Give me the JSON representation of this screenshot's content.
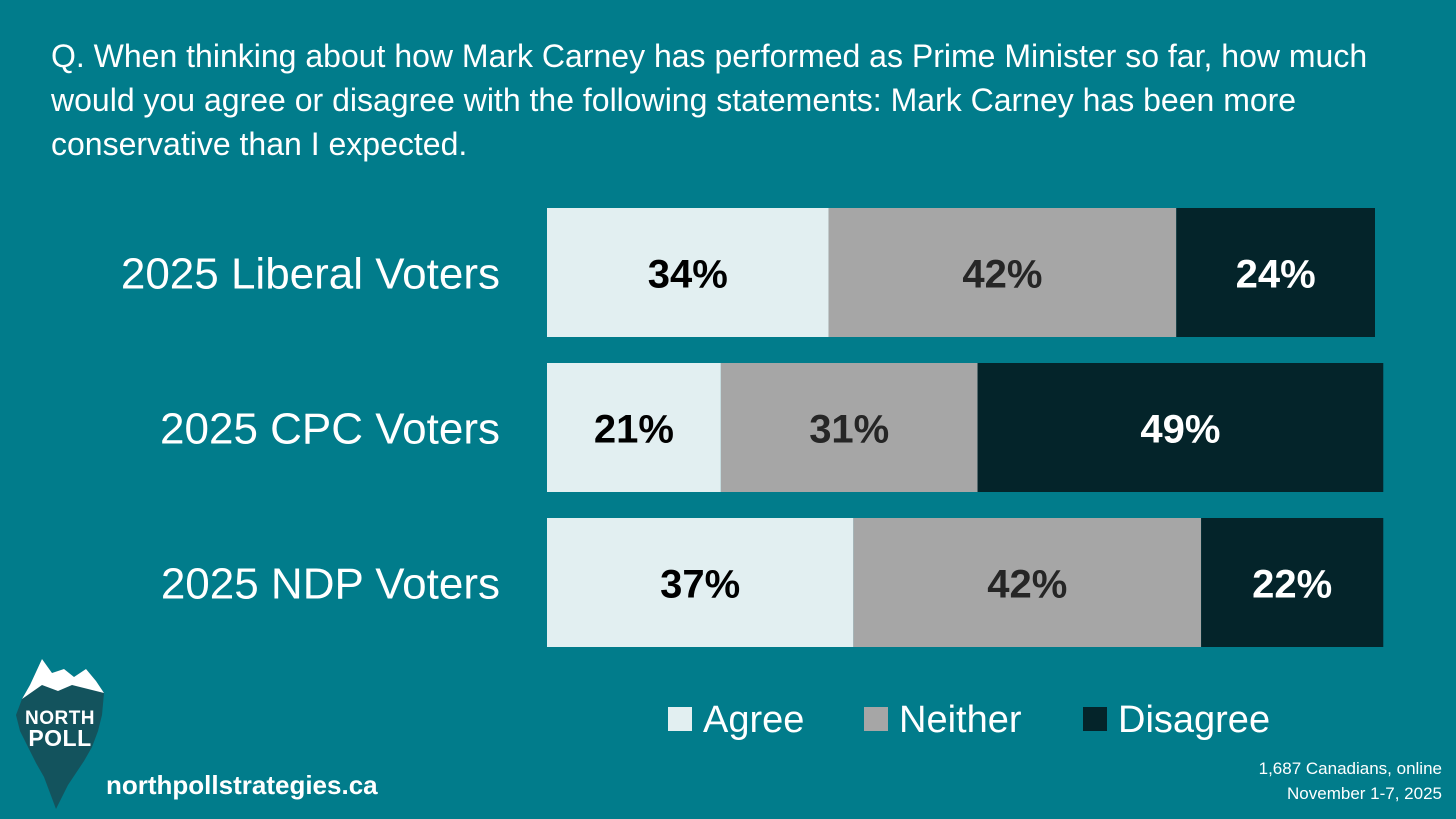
{
  "question": "Q. When thinking about how Mark Carney has performed as Prime Minister so far, how much would you agree or disagree with the following statements: Mark Carney has been more conservative than I expected.",
  "colors": {
    "background": "#017c8b",
    "agree": "#e2eff1",
    "neither": "#a6a6a6",
    "disagree": "#04242a"
  },
  "chart_data": {
    "type": "bar",
    "orientation": "horizontal",
    "stacked": true,
    "categories": [
      "2025 Liberal Voters",
      "2025 CPC Voters",
      "2025 NDP Voters"
    ],
    "series": [
      {
        "name": "Agree",
        "values": [
          34,
          21,
          37
        ],
        "labels": [
          "34%",
          "21%",
          "37%"
        ]
      },
      {
        "name": "Neither",
        "values": [
          42,
          31,
          42
        ],
        "labels": [
          "42%",
          "31%",
          "42%"
        ]
      },
      {
        "name": "Disagree",
        "values": [
          24,
          49,
          22
        ],
        "labels": [
          "24%",
          "49%",
          "22%"
        ]
      }
    ],
    "legend": {
      "position": "bottom",
      "entries": [
        "Agree",
        "Neither",
        "Disagree"
      ]
    },
    "xlim": [
      0,
      100
    ]
  },
  "logo": {
    "line1": "NORTH",
    "line2": "POLL"
  },
  "website": "northpollstrategies.ca",
  "source": {
    "line1": "1,687 Canadians, online",
    "line2": "November 1-7, 2025"
  }
}
